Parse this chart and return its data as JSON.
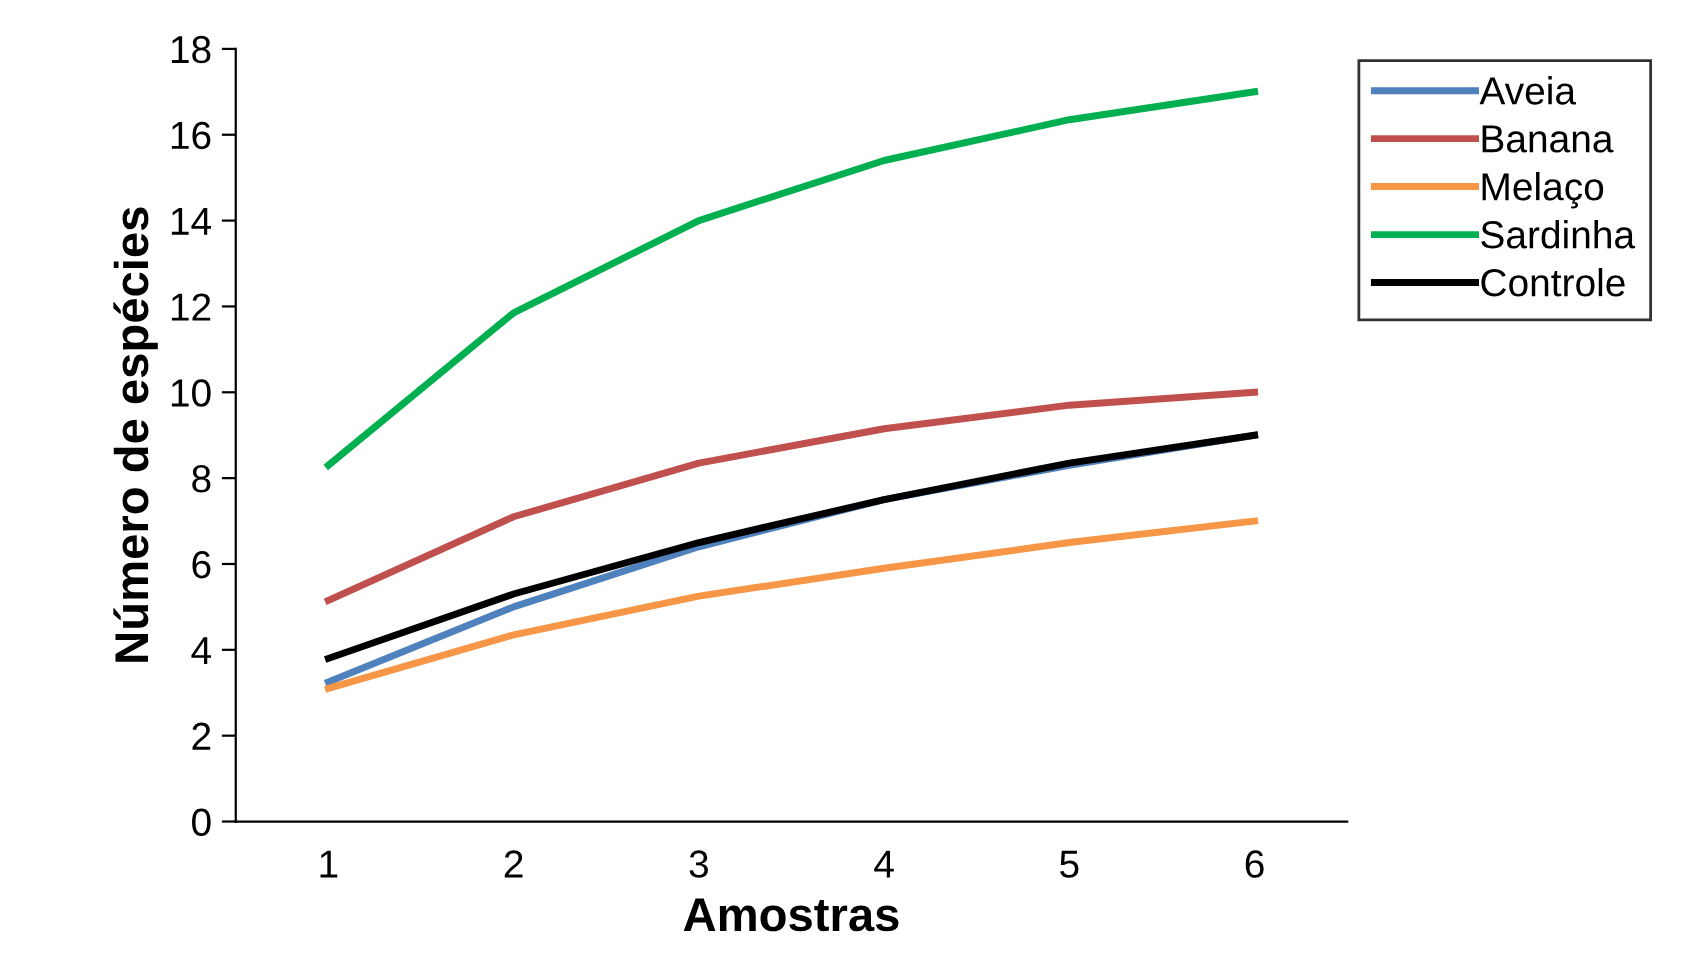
{
  "chart_data": {
    "type": "line",
    "xlabel": "Amostras",
    "ylabel": "Número de espécies",
    "categories": [
      "1",
      "2",
      "3",
      "4",
      "5",
      "6"
    ],
    "series": [
      {
        "name": "Aveia",
        "color": "#4f81bd",
        "values": [
          3.25,
          5.0,
          6.4,
          7.5,
          8.3,
          9.0
        ]
      },
      {
        "name": "Banana",
        "color": "#c0504d",
        "values": [
          5.15,
          7.1,
          8.35,
          9.15,
          9.7,
          10.0
        ]
      },
      {
        "name": "Melaço",
        "color": "#f79646",
        "values": [
          3.1,
          4.35,
          5.25,
          5.9,
          6.5,
          7.0
        ]
      },
      {
        "name": "Sardinha",
        "color": "#00b050",
        "values": [
          8.3,
          11.85,
          14.0,
          15.4,
          16.35,
          17.0
        ]
      },
      {
        "name": "Controle",
        "color": "#000000",
        "values": [
          3.8,
          5.3,
          6.5,
          7.5,
          8.35,
          9.0
        ]
      }
    ],
    "ylim": [
      0,
      18
    ],
    "yticks": [
      0,
      2,
      4,
      6,
      8,
      10,
      12,
      14,
      16,
      18
    ],
    "grid": false,
    "legend": "top right",
    "marker": "none",
    "line_style": "solid"
  }
}
